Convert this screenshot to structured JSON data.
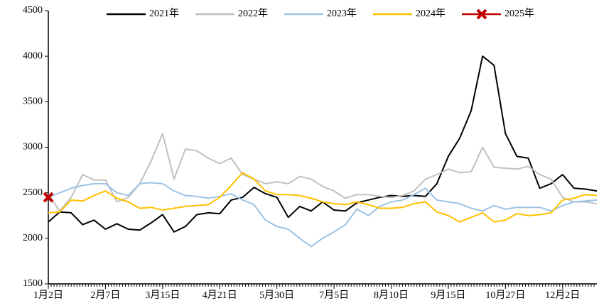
{
  "chart_data": {
    "type": "line",
    "categories": [
      "1月2日",
      null,
      null,
      null,
      null,
      "2月7日",
      null,
      null,
      null,
      null,
      "3月15日",
      null,
      null,
      null,
      null,
      "4月21日",
      null,
      null,
      null,
      null,
      "5月30日",
      null,
      null,
      null,
      null,
      "7月5日",
      null,
      null,
      null,
      null,
      "8月10日",
      null,
      null,
      null,
      null,
      "9月15日",
      null,
      null,
      null,
      null,
      "10月27日",
      null,
      null,
      null,
      null,
      "12月2日",
      null,
      null,
      null
    ],
    "series": [
      {
        "name": "2021年",
        "color": "#000000",
        "values": [
          2180,
          2290,
          2280,
          2150,
          2200,
          2100,
          2160,
          2100,
          2090,
          2170,
          2260,
          2070,
          2130,
          2260,
          2280,
          2270,
          2420,
          2450,
          2560,
          2490,
          2450,
          2230,
          2350,
          2300,
          2400,
          2310,
          2300,
          2390,
          2420,
          2450,
          2470,
          2460,
          2470,
          2460,
          2600,
          2900,
          3100,
          3400,
          4000,
          3900,
          3150,
          2900,
          2880,
          2550,
          2600,
          2700,
          2550,
          2540,
          2520
        ]
      },
      {
        "name": "2022年",
        "color": "#c0c0c0",
        "values": [
          2480,
          2300,
          2450,
          2700,
          2640,
          2640,
          2400,
          2450,
          2600,
          2850,
          3150,
          2650,
          2980,
          2960,
          2880,
          2820,
          2880,
          2700,
          2650,
          2600,
          2620,
          2600,
          2680,
          2650,
          2570,
          2520,
          2440,
          2480,
          2480,
          2460,
          2450,
          2470,
          2520,
          2650,
          2700,
          2760,
          2720,
          2730,
          3000,
          2780,
          2770,
          2760,
          2790,
          2700,
          2650,
          2450,
          2400,
          2400,
          2380
        ]
      },
      {
        "name": "2023年",
        "color": "#9dc3e6",
        "values": [
          2450,
          2500,
          2550,
          2580,
          2600,
          2600,
          2500,
          2470,
          2600,
          2610,
          2600,
          2520,
          2470,
          2460,
          2440,
          2460,
          2490,
          2420,
          2370,
          2200,
          2130,
          2100,
          2000,
          1910,
          2000,
          2070,
          2150,
          2320,
          2250,
          2350,
          2400,
          2420,
          2480,
          2550,
          2420,
          2400,
          2380,
          2330,
          2300,
          2360,
          2320,
          2340,
          2340,
          2340,
          2300,
          2360,
          2400,
          2410,
          2420
        ]
      },
      {
        "name": "2024年",
        "color": "#ffc000",
        "values": [
          2280,
          2290,
          2420,
          2410,
          2470,
          2520,
          2440,
          2400,
          2330,
          2340,
          2310,
          2330,
          2350,
          2360,
          2370,
          2450,
          2580,
          2720,
          2650,
          2520,
          2480,
          2480,
          2470,
          2440,
          2400,
          2380,
          2370,
          2400,
          2370,
          2330,
          2330,
          2340,
          2380,
          2400,
          2290,
          2250,
          2180,
          2230,
          2280,
          2180,
          2200,
          2270,
          2250,
          2260,
          2280,
          2420,
          2440,
          2480,
          2470
        ]
      },
      {
        "name": "2025年",
        "color": "#c00000",
        "values": [
          2450,
          null,
          null,
          null,
          null,
          null,
          null,
          null,
          null,
          null,
          null,
          null,
          null,
          null,
          null,
          null,
          null,
          null,
          null,
          null,
          null,
          null,
          null,
          null,
          null,
          null,
          null,
          null,
          null,
          null,
          null,
          null,
          null,
          null,
          null,
          null,
          null,
          null,
          null,
          null,
          null,
          null,
          null,
          null,
          null,
          null,
          null,
          null,
          null
        ]
      }
    ],
    "ylim": [
      1500,
      4500
    ],
    "yticks": [
      1500,
      2000,
      2500,
      3000,
      3500,
      4000,
      4500
    ],
    "legend": "top"
  }
}
